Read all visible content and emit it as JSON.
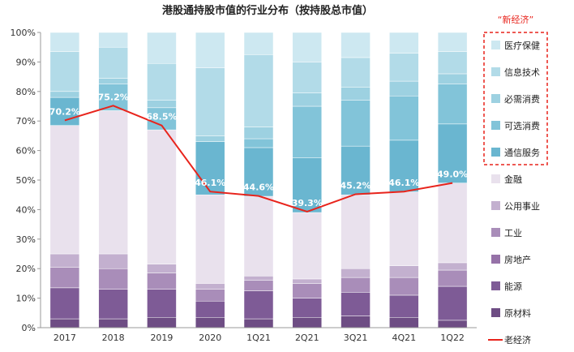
{
  "chart_data": {
    "type": "bar",
    "stacked": true,
    "title": "港股通持股市值的行业分布（按持股总市值）",
    "categories": [
      "2017",
      "2018",
      "2019",
      "2020",
      "1Q21",
      "2Q21",
      "3Q21",
      "4Q21",
      "1Q22"
    ],
    "ylim": [
      0,
      100
    ],
    "yticks": [
      "0%",
      "10%",
      "20%",
      "30%",
      "40%",
      "50%",
      "60%",
      "70%",
      "80%",
      "90%",
      "100%"
    ],
    "legend_placement": "right",
    "new_economy_label": "“新经济”",
    "series": [
      {
        "name": "原材料",
        "color": "#6e4d84",
        "values": [
          3.0,
          3.0,
          3.5,
          3.5,
          3.0,
          3.5,
          4.0,
          3.5,
          2.5
        ]
      },
      {
        "name": "能源",
        "color": "#7e5b96",
        "values": [
          10.5,
          10.0,
          9.5,
          5.5,
          9.5,
          6.5,
          8.0,
          7.5,
          11.5
        ]
      },
      {
        "name": "房地产",
        "color": "#9672a8",
        "values": [
          0.0,
          0.0,
          0.0,
          0.0,
          0.0,
          0.0,
          0.0,
          0.0,
          0.0
        ]
      },
      {
        "name": "工业",
        "color": "#a98db9",
        "values": [
          7.0,
          7.0,
          5.5,
          4.0,
          3.5,
          5.0,
          5.0,
          6.0,
          5.5
        ]
      },
      {
        "name": "公用事业",
        "color": "#c3b0cf",
        "values": [
          4.5,
          5.0,
          3.0,
          2.0,
          1.5,
          1.5,
          3.0,
          4.0,
          2.5
        ]
      },
      {
        "name": "金融",
        "color": "#e9e1ed",
        "values": [
          43.5,
          48.5,
          45.5,
          30.0,
          27.0,
          22.5,
          25.0,
          25.0,
          27.0
        ]
      },
      {
        "name": "通信服务",
        "color": "#6ab6d0",
        "values": [
          9.5,
          0.0,
          0.0,
          18.0,
          16.5,
          18.5,
          16.5,
          17.5,
          20.0
        ]
      },
      {
        "name": "可选消费",
        "color": "#82c4d9",
        "values": [
          0.0,
          9.0,
          7.5,
          0.0,
          3.0,
          17.5,
          15.5,
          15.0,
          13.5
        ]
      },
      {
        "name": "必需消费",
        "color": "#9dd1e1",
        "values": [
          2.0,
          2.0,
          2.5,
          2.0,
          4.0,
          4.5,
          4.5,
          5.0,
          3.5
        ]
      },
      {
        "name": "信息技术",
        "color": "#b2dbe8",
        "values": [
          13.5,
          10.5,
          12.5,
          23.0,
          24.5,
          10.5,
          10.0,
          9.5,
          7.5
        ]
      },
      {
        "name": "医疗保健",
        "color": "#cde8f1",
        "values": [
          6.5,
          5.0,
          10.5,
          12.0,
          7.5,
          10.0,
          8.5,
          7.0,
          6.5
        ]
      }
    ],
    "line": {
      "name": "老经济",
      "color": "#e8241c",
      "values": [
        70.2,
        75.2,
        68.5,
        46.1,
        44.6,
        39.3,
        45.2,
        46.1,
        49.0
      ],
      "labels": [
        "70.2%",
        "75.2%",
        "68.5%",
        "46.1%",
        "44.6%",
        "39.3%",
        "45.2%",
        "46.1%",
        "49.0%"
      ]
    },
    "legend_order": [
      "医疗保健",
      "信息技术",
      "必需消费",
      "可选消费",
      "通信服务",
      "金融",
      "公用事业",
      "工业",
      "房地产",
      "能源",
      "原材料",
      "老经济"
    ]
  }
}
